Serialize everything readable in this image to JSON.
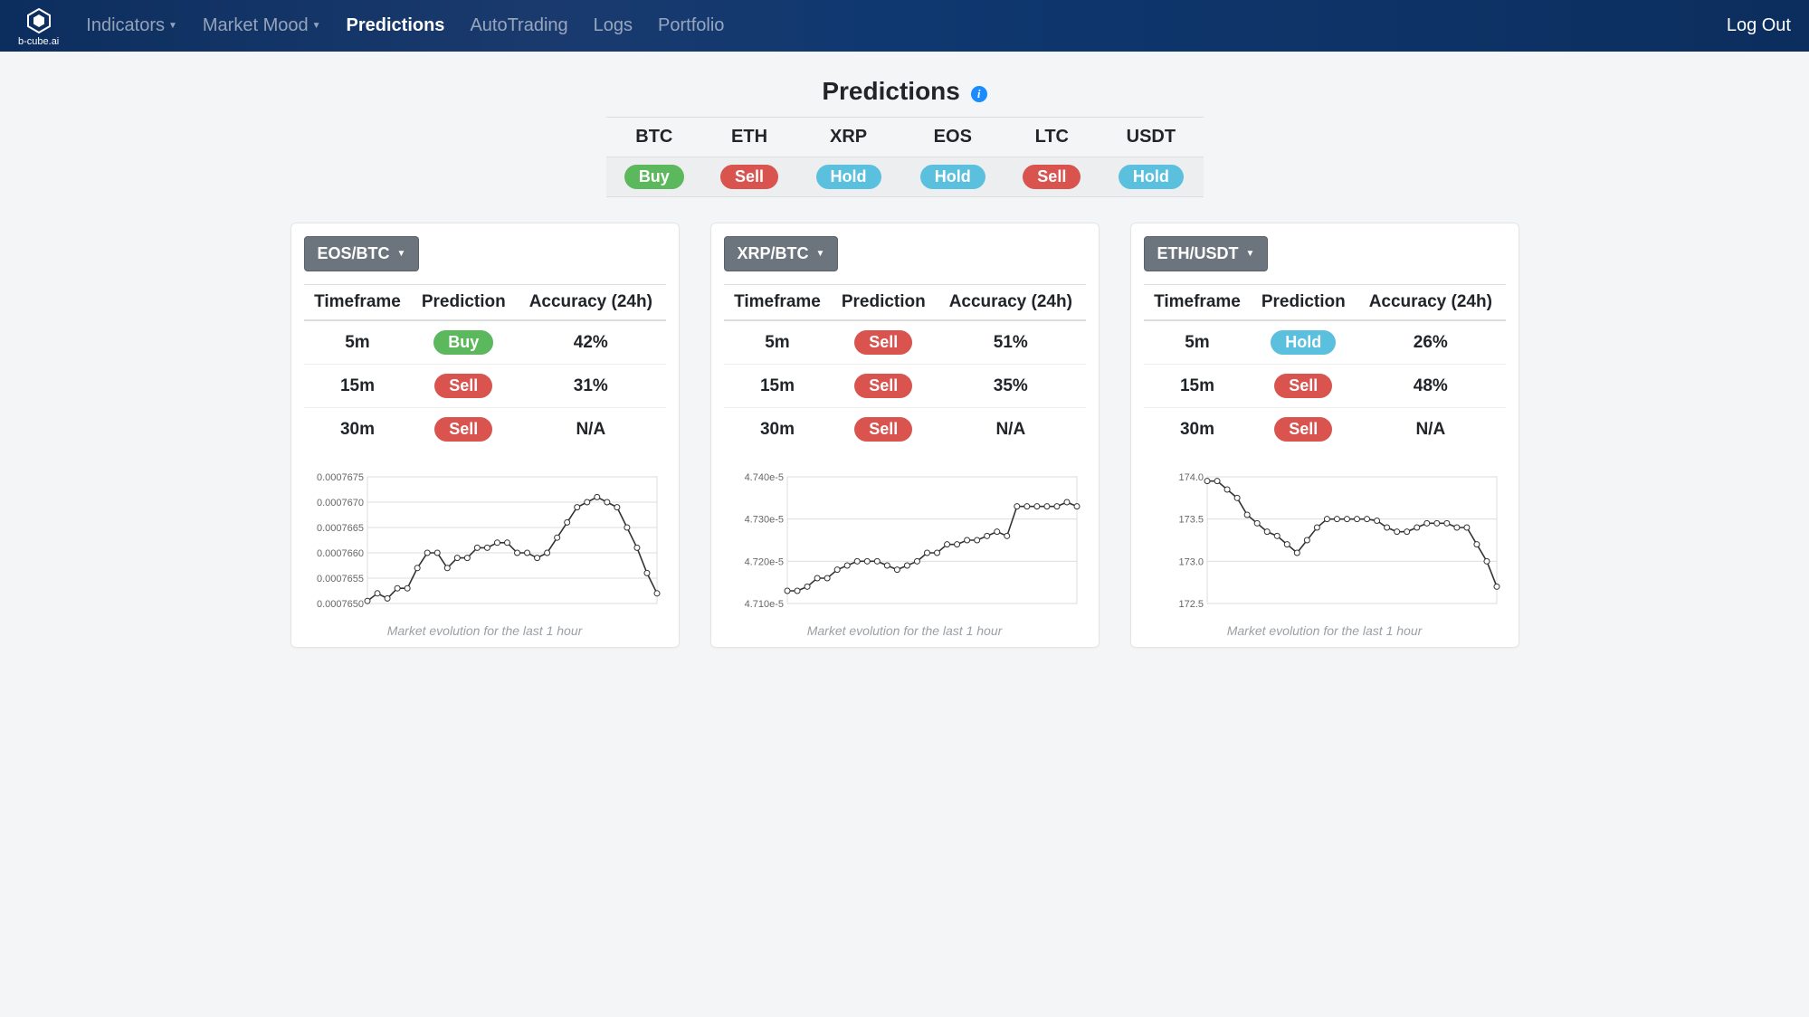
{
  "brand": {
    "name": "b-cube.ai"
  },
  "nav": {
    "items": [
      {
        "label": "Indicators",
        "dropdown": true,
        "active": false
      },
      {
        "label": "Market Mood",
        "dropdown": true,
        "active": false
      },
      {
        "label": "Predictions",
        "dropdown": false,
        "active": true
      },
      {
        "label": "AutoTrading",
        "dropdown": false,
        "active": false
      },
      {
        "label": "Logs",
        "dropdown": false,
        "active": false
      },
      {
        "label": "Portfolio",
        "dropdown": false,
        "active": false
      }
    ],
    "logout": "Log Out"
  },
  "page": {
    "title": "Predictions"
  },
  "summary": {
    "columns": [
      "BTC",
      "ETH",
      "XRP",
      "EOS",
      "LTC",
      "USDT"
    ],
    "signals": [
      "Buy",
      "Sell",
      "Hold",
      "Hold",
      "Sell",
      "Hold"
    ]
  },
  "cards": [
    {
      "pair": "EOS/BTC",
      "headers": [
        "Timeframe",
        "Prediction",
        "Accuracy (24h)"
      ],
      "rows": [
        {
          "tf": "5m",
          "signal": "Buy",
          "acc": "42%"
        },
        {
          "tf": "15m",
          "signal": "Sell",
          "acc": "31%"
        },
        {
          "tf": "30m",
          "signal": "Sell",
          "acc": "N/A"
        }
      ],
      "chart": {
        "type": "line",
        "caption": "Market evolution for the last 1 hour",
        "ylim": [
          0.000765,
          0.0007675
        ],
        "yticks": [
          0.000765,
          0.0007655,
          0.000766,
          0.0007665,
          0.000767,
          0.0007675
        ],
        "ytick_labels": [
          "0.0007650",
          "0.0007655",
          "0.0007660",
          "0.0007665",
          "0.0007670",
          "0.0007675"
        ],
        "ytick_fontsize": 11,
        "line_color": "#333333",
        "marker_color": "#ffffff",
        "marker_edge": "#333333",
        "marker_size": 3,
        "line_width": 1.6,
        "grid_color": "#dddddd",
        "background_color": "#ffffff",
        "x_points": 30,
        "values": [
          0.00076505,
          0.0007652,
          0.0007651,
          0.0007653,
          0.0007653,
          0.0007657,
          0.000766,
          0.000766,
          0.0007657,
          0.0007659,
          0.0007659,
          0.0007661,
          0.0007661,
          0.0007662,
          0.0007662,
          0.000766,
          0.000766,
          0.0007659,
          0.000766,
          0.0007663,
          0.0007666,
          0.0007669,
          0.000767,
          0.0007671,
          0.000767,
          0.0007669,
          0.0007665,
          0.0007661,
          0.0007656,
          0.0007652
        ]
      }
    },
    {
      "pair": "XRP/BTC",
      "headers": [
        "Timeframe",
        "Prediction",
        "Accuracy (24h)"
      ],
      "rows": [
        {
          "tf": "5m",
          "signal": "Sell",
          "acc": "51%"
        },
        {
          "tf": "15m",
          "signal": "Sell",
          "acc": "35%"
        },
        {
          "tf": "30m",
          "signal": "Sell",
          "acc": "N/A"
        }
      ],
      "chart": {
        "type": "line",
        "caption": "Market evolution for the last 1 hour",
        "ylim": [
          4.71e-05,
          4.74e-05
        ],
        "yticks": [
          4.71e-05,
          4.72e-05,
          4.73e-05,
          4.74e-05
        ],
        "ytick_labels": [
          "4.710e-5",
          "4.720e-5",
          "4.730e-5",
          "4.740e-5"
        ],
        "ytick_fontsize": 11,
        "line_color": "#333333",
        "marker_color": "#ffffff",
        "marker_edge": "#333333",
        "marker_size": 3,
        "line_width": 1.6,
        "grid_color": "#dddddd",
        "background_color": "#ffffff",
        "x_points": 30,
        "values": [
          4.713e-05,
          4.713e-05,
          4.714e-05,
          4.716e-05,
          4.716e-05,
          4.718e-05,
          4.719e-05,
          4.72e-05,
          4.72e-05,
          4.72e-05,
          4.719e-05,
          4.718e-05,
          4.719e-05,
          4.72e-05,
          4.722e-05,
          4.722e-05,
          4.724e-05,
          4.724e-05,
          4.725e-05,
          4.725e-05,
          4.726e-05,
          4.727e-05,
          4.726e-05,
          4.733e-05,
          4.733e-05,
          4.733e-05,
          4.733e-05,
          4.733e-05,
          4.734e-05,
          4.733e-05
        ]
      }
    },
    {
      "pair": "ETH/USDT",
      "headers": [
        "Timeframe",
        "Prediction",
        "Accuracy (24h)"
      ],
      "rows": [
        {
          "tf": "5m",
          "signal": "Hold",
          "acc": "26%"
        },
        {
          "tf": "15m",
          "signal": "Sell",
          "acc": "48%"
        },
        {
          "tf": "30m",
          "signal": "Sell",
          "acc": "N/A"
        }
      ],
      "chart": {
        "type": "line",
        "caption": "Market evolution for the last 1 hour",
        "ylim": [
          172.5,
          174.0
        ],
        "yticks": [
          172.5,
          173.0,
          173.5,
          174.0
        ],
        "ytick_labels": [
          "172.5",
          "173.0",
          "173.5",
          "174.0"
        ],
        "ytick_fontsize": 11,
        "line_color": "#333333",
        "marker_color": "#ffffff",
        "marker_edge": "#333333",
        "marker_size": 3,
        "line_width": 1.6,
        "grid_color": "#dddddd",
        "background_color": "#ffffff",
        "x_points": 30,
        "values": [
          173.95,
          173.95,
          173.85,
          173.75,
          173.55,
          173.45,
          173.35,
          173.3,
          173.2,
          173.1,
          173.25,
          173.4,
          173.5,
          173.5,
          173.5,
          173.5,
          173.5,
          173.48,
          173.4,
          173.35,
          173.35,
          173.4,
          173.45,
          173.45,
          173.45,
          173.4,
          173.4,
          173.2,
          173.0,
          172.7
        ]
      }
    }
  ],
  "colors": {
    "buy": "#5cb85c",
    "sell": "#d9534f",
    "hold": "#5bc0de",
    "navbar_start": "#0c2e5e",
    "navbar_mid": "#1a3a6e",
    "body_bg": "#f4f5f7",
    "card_bg": "#ffffff",
    "border": "#e5e5e5",
    "pair_btn_bg": "#6c757d"
  }
}
